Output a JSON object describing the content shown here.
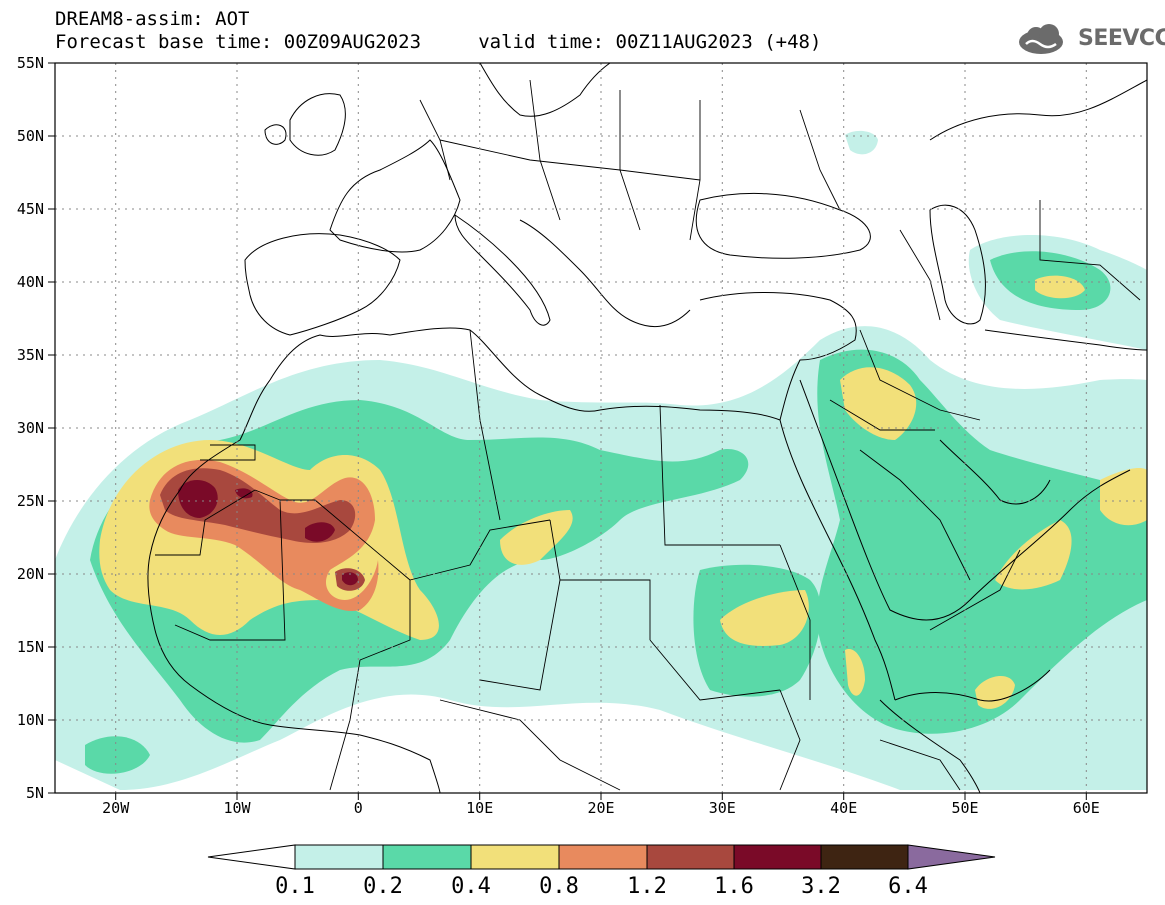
{
  "header": {
    "title_line1": "DREAM8-assim: AOT",
    "title_line2": "Forecast base time: 00Z09AUG2023     valid time: 00Z11AUG2023 (+48)"
  },
  "logo": {
    "text": "SEEVCCC",
    "icon": "cloud-icon"
  },
  "map": {
    "lon_range": [
      -25,
      65
    ],
    "lat_range": [
      5,
      55
    ],
    "grid": "dotted",
    "lat_ticks": [
      {
        "value": 55,
        "label": "55N"
      },
      {
        "value": 50,
        "label": "50N"
      },
      {
        "value": 45,
        "label": "45N"
      },
      {
        "value": 40,
        "label": "40N"
      },
      {
        "value": 35,
        "label": "35N"
      },
      {
        "value": 30,
        "label": "30N"
      },
      {
        "value": 25,
        "label": "25N"
      },
      {
        "value": 20,
        "label": "20N"
      },
      {
        "value": 15,
        "label": "15N"
      },
      {
        "value": 10,
        "label": "10N"
      },
      {
        "value": 5,
        "label": "5N"
      }
    ],
    "lon_ticks": [
      {
        "value": -20,
        "label": "20W"
      },
      {
        "value": -10,
        "label": "10W"
      },
      {
        "value": 0,
        "label": "0"
      },
      {
        "value": 10,
        "label": "10E"
      },
      {
        "value": 20,
        "label": "20E"
      },
      {
        "value": 30,
        "label": "30E"
      },
      {
        "value": 40,
        "label": "40E"
      },
      {
        "value": 50,
        "label": "50E"
      },
      {
        "value": 60,
        "label": "60E"
      }
    ]
  },
  "colorbar": {
    "levels": [
      "0.1",
      "0.2",
      "0.4",
      "0.8",
      "1.2",
      "1.6",
      "3.2",
      "6.4"
    ],
    "colors": [
      "#ffffff",
      "#c4f0e8",
      "#5ad9a8",
      "#f2e07a",
      "#e88a5e",
      "#a8483e",
      "#7a0a28",
      "#3e2412",
      "#8a6a9e"
    ]
  }
}
